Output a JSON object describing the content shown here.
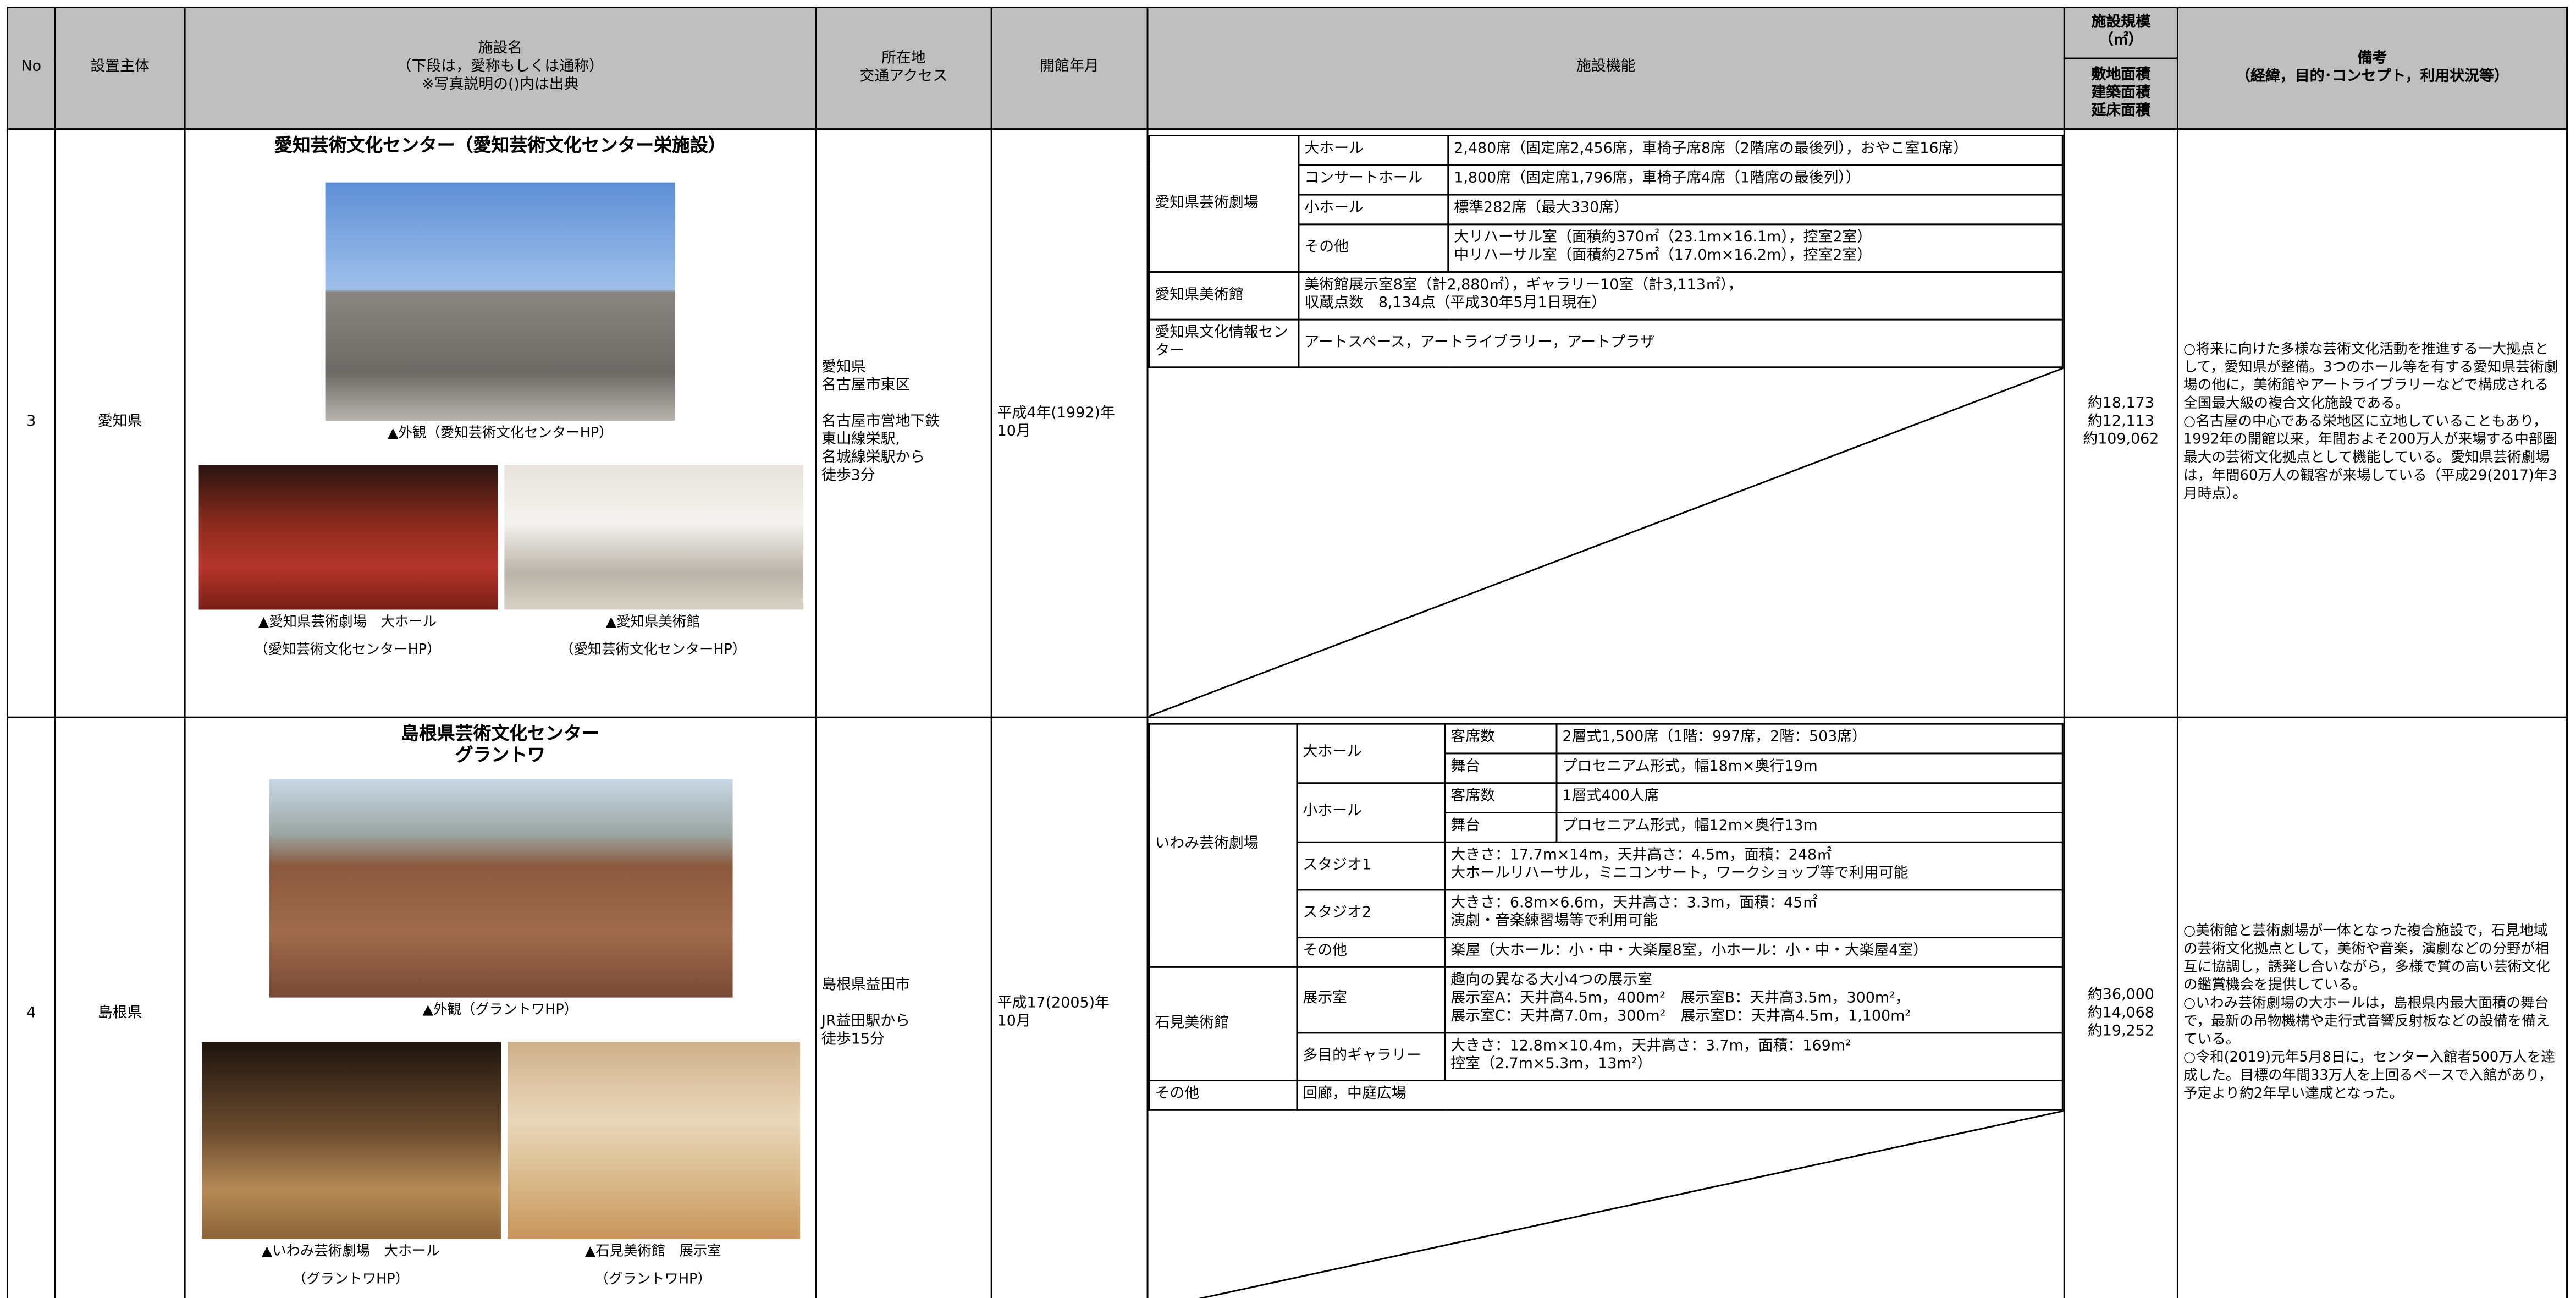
{
  "table": {
    "headers": {
      "no": "No",
      "owner": "設置主体",
      "name": [
        "施設名",
        "（下段は，愛称もしくは通称）",
        "※写真説明の()内は出典"
      ],
      "location": [
        "所在地",
        "交通アクセス"
      ],
      "opened": "開館年月",
      "functions": "施設機能",
      "scale": [
        "施設規模",
        "（㎡）"
      ],
      "scale_sub": [
        "敷地面積",
        "建築面積",
        "延床面積"
      ],
      "notes": [
        "備考",
        "（経緯，目的･コンセプト，利用状況等）"
      ]
    },
    "rows": [
      {
        "no": "3",
        "owner": "愛知県",
        "name": [
          "愛知芸術文化センター（愛知芸術文化センター栄施設）"
        ],
        "photos": [
          {
            "caption": [
              "▲外観（愛知芸術文化センターHP）"
            ]
          },
          {
            "caption": [
              "▲愛知県芸術劇場　大ホール",
              "（愛知芸術文化センターHP）"
            ]
          },
          {
            "caption": [
              "▲愛知県美術館",
              "（愛知芸術文化センターHP）"
            ]
          }
        ],
        "location": {
          "address": [
            "愛知県",
            "名古屋市東区"
          ],
          "access": [
            "名古屋市営地下鉄",
            "東山線栄駅,",
            "名城線栄駅から",
            "徒歩3分"
          ]
        },
        "opened": [
          "平成4年(1992)年",
          "10月"
        ],
        "functions": [
          {
            "name": "愛知県芸術劇場",
            "items": [
              {
                "name": "大ホール",
                "detail": [
                  "2,480席（固定席2,456席，車椅子席8席（2階席の最後列），おやこ室16席）"
                ]
              },
              {
                "name": "コンサートホール",
                "detail": [
                  "1,800席（固定席1,796席，車椅子席4席（1階席の最後列））"
                ]
              },
              {
                "name": "小ホール",
                "detail": [
                  "標準282席（最大330席）"
                ]
              },
              {
                "name": "その他",
                "detail": [
                  "大リハーサル室（面積約370㎡（23.1m×16.1m），控室2室）",
                  "中リハーサル室（面積約275㎡（17.0m×16.2m），控室2室）"
                ]
              }
            ]
          },
          {
            "name": "愛知県美術館",
            "detail": [
              "美術館展示室8室（計2,880㎡），ギャラリー10室（計3,113㎡），",
              "収蔵点数　8,134点（平成30年5月1日現在）"
            ]
          },
          {
            "name": "愛知県文化情報センター",
            "detail": [
              "アートスペース，アートライブラリー，アートプラザ"
            ]
          }
        ],
        "scale": [
          "約18,173",
          "約12,113",
          "約109,062"
        ],
        "notes": [
          "○将来に向けた多様な芸術文化活動を推進する一大拠点として，愛知県が整備。3つのホール等を有する愛知県芸術劇場の他に，美術館やアートライブラリーなどで構成される全国最大級の複合文化施設である。",
          "○名古屋の中心である栄地区に立地していることもあり，1992年の開館以来，年間およそ200万人が来場する中部圏最大の芸術文化拠点として機能している。愛知県芸術劇場は，年間60万人の観客が来場している（平成29(2017)年3月時点）。"
        ]
      },
      {
        "no": "4",
        "owner": "島根県",
        "name": [
          "島根県芸術文化センター",
          "グラントワ"
        ],
        "photos": [
          {
            "caption": [
              "▲外観（グラントワHP）"
            ]
          },
          {
            "caption": [
              "▲いわみ芸術劇場　大ホール",
              "（グラントワHP）"
            ]
          },
          {
            "caption": [
              "▲石見美術館　展示室",
              "（グラントワHP）"
            ]
          }
        ],
        "location": {
          "address": [
            "島根県益田市"
          ],
          "access": [
            "JR益田駅から",
            "徒歩15分"
          ]
        },
        "opened": [
          "平成17(2005)年",
          "10月"
        ],
        "functions": [
          {
            "name": "いわみ芸術劇場",
            "items": [
              {
                "name": "大ホール",
                "items": [
                  {
                    "name": "客席数",
                    "detail": [
                      "2層式1,500席（1階：997席，2階：503席）"
                    ]
                  },
                  {
                    "name": "舞台",
                    "detail": [
                      "プロセニアム形式，幅18m×奥行19m"
                    ]
                  }
                ]
              },
              {
                "name": "小ホール",
                "items": [
                  {
                    "name": "客席数",
                    "detail": [
                      "1層式400人席"
                    ]
                  },
                  {
                    "name": "舞台",
                    "detail": [
                      "プロセニアム形式，幅12m×奥行13m"
                    ]
                  }
                ]
              },
              {
                "name": "スタジオ1",
                "detail": [
                  "大きさ：17.7m×14m，天井高さ：4.5m，面積：248㎡",
                  "大ホールリハーサル，ミニコンサート，ワークショップ等で利用可能"
                ]
              },
              {
                "name": "スタジオ2",
                "detail": [
                  "大きさ：6.8m×6.6m，天井高さ：3.3m，面積：45㎡",
                  "演劇・音楽練習場等で利用可能"
                ]
              },
              {
                "name": "その他",
                "detail": [
                  "楽屋（大ホール：小・中・大楽屋8室，小ホール：小・中・大楽屋4室）"
                ]
              }
            ]
          },
          {
            "name": "石見美術館",
            "items": [
              {
                "name": "展示室",
                "detail": [
                  "趣向の異なる大小4つの展示室",
                  "展示室A：天井高4.5m，400m²　展示室B：天井高3.5m，300m²，",
                  "展示室C：天井高7.0m，300m²　展示室D：天井高4.5m，1,100m²"
                ]
              },
              {
                "name": "多目的ギャラリー",
                "detail": [
                  "大きさ：12.8m×10.4m，天井高さ：3.7m，面積：169m²",
                  "控室（2.7m×5.3m，13m²）"
                ]
              }
            ]
          },
          {
            "name": "その他",
            "detail": [
              "回廊，中庭広場"
            ]
          }
        ],
        "scale": [
          "約36,000",
          "約14,068",
          "約19,252"
        ],
        "notes": [
          "○美術館と芸術劇場が一体となった複合施設で，石見地域の芸術文化拠点として，美術や音楽，演劇などの分野が相互に協調し，誘発し合いながら，多様で質の高い芸術文化の鑑賞機会を提供している。",
          "○いわみ芸術劇場の大ホールは，島根県内最大面積の舞台で，最新の吊物機構や走行式音響反射板などの設備を備えている。",
          "○令和(2019)元年5月8日に，センター入館者500万人を達成した。目標の年間33万人を上回るペースで入館があり，予定より約2年早い達成となった。"
        ]
      }
    ]
  }
}
